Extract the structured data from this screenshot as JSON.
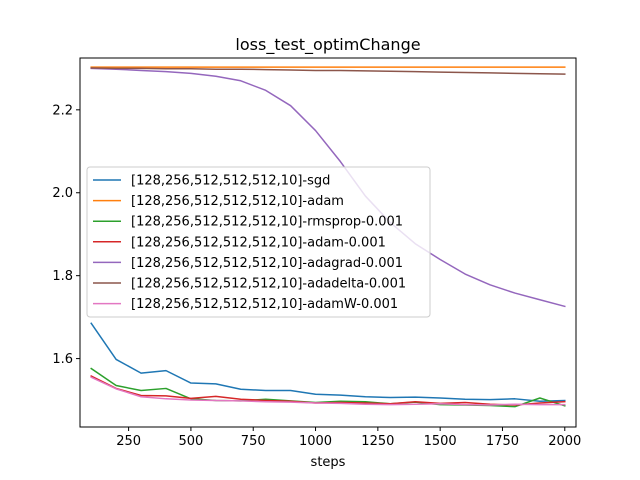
{
  "chart_data": {
    "type": "line",
    "title": "loss_test_optimChange",
    "xlabel": "steps",
    "ylabel": "",
    "xlim": [
      55,
      2045
    ],
    "ylim": [
      1.435,
      2.325
    ],
    "xticks": [
      250,
      500,
      750,
      1000,
      1250,
      1500,
      1750,
      2000
    ],
    "yticks": [
      1.6,
      1.8,
      2.0,
      2.2
    ],
    "ytick_labels": [
      "1.6",
      "1.8",
      "2.0",
      "2.2"
    ],
    "grid": false,
    "legend_position": "center-left",
    "x": [
      100,
      200,
      300,
      400,
      500,
      600,
      700,
      800,
      900,
      1000,
      1100,
      1200,
      1300,
      1400,
      1500,
      1600,
      1700,
      1800,
      1900,
      2000
    ],
    "series": [
      {
        "name": "[128,256,512,512,512,10]-sgd",
        "color": "#1f77b4",
        "values": [
          1.685,
          1.598,
          1.565,
          1.571,
          1.541,
          1.539,
          1.526,
          1.523,
          1.523,
          1.514,
          1.512,
          1.508,
          1.506,
          1.507,
          1.505,
          1.502,
          1.501,
          1.503,
          1.497,
          1.499
        ]
      },
      {
        "name": "[128,256,512,512,512,10]-adam",
        "color": "#ff7f0e",
        "values": [
          2.303,
          2.303,
          2.303,
          2.303,
          2.303,
          2.303,
          2.303,
          2.303,
          2.303,
          2.303,
          2.303,
          2.303,
          2.303,
          2.303,
          2.303,
          2.303,
          2.303,
          2.303,
          2.303,
          2.303
        ]
      },
      {
        "name": "[128,256,512,512,512,10]-rmsprop-0.001",
        "color": "#2ca02c",
        "values": [
          1.576,
          1.535,
          1.523,
          1.528,
          1.503,
          1.499,
          1.498,
          1.502,
          1.498,
          1.494,
          1.497,
          1.496,
          1.491,
          1.495,
          1.489,
          1.488,
          1.487,
          1.484,
          1.505,
          1.486
        ]
      },
      {
        "name": "[128,256,512,512,512,10]-adam-0.001",
        "color": "#d62728",
        "values": [
          1.558,
          1.528,
          1.511,
          1.51,
          1.504,
          1.509,
          1.502,
          1.499,
          1.497,
          1.493,
          1.494,
          1.493,
          1.491,
          1.496,
          1.492,
          1.494,
          1.49,
          1.488,
          1.493,
          1.496
        ]
      },
      {
        "name": "[128,256,512,512,512,10]-adagrad-0.001",
        "color": "#9467bd",
        "values": [
          2.3,
          2.298,
          2.295,
          2.292,
          2.288,
          2.281,
          2.27,
          2.247,
          2.21,
          2.15,
          2.075,
          1.992,
          1.928,
          1.877,
          1.839,
          1.804,
          1.778,
          1.758,
          1.742,
          1.726
        ]
      },
      {
        "name": "[128,256,512,512,512,10]-adadelta-0.001",
        "color": "#8c564b",
        "values": [
          2.301,
          2.3,
          2.3,
          2.299,
          2.299,
          2.298,
          2.298,
          2.297,
          2.296,
          2.295,
          2.295,
          2.294,
          2.293,
          2.292,
          2.291,
          2.29,
          2.289,
          2.288,
          2.287,
          2.286
        ]
      },
      {
        "name": "[128,256,512,512,512,10]-adamW-0.001",
        "color": "#e377c2",
        "values": [
          1.555,
          1.527,
          1.508,
          1.503,
          1.5,
          1.499,
          1.498,
          1.496,
          1.495,
          1.493,
          1.492,
          1.49,
          1.489,
          1.49,
          1.491,
          1.489,
          1.488,
          1.49,
          1.489,
          1.489
        ]
      }
    ]
  }
}
